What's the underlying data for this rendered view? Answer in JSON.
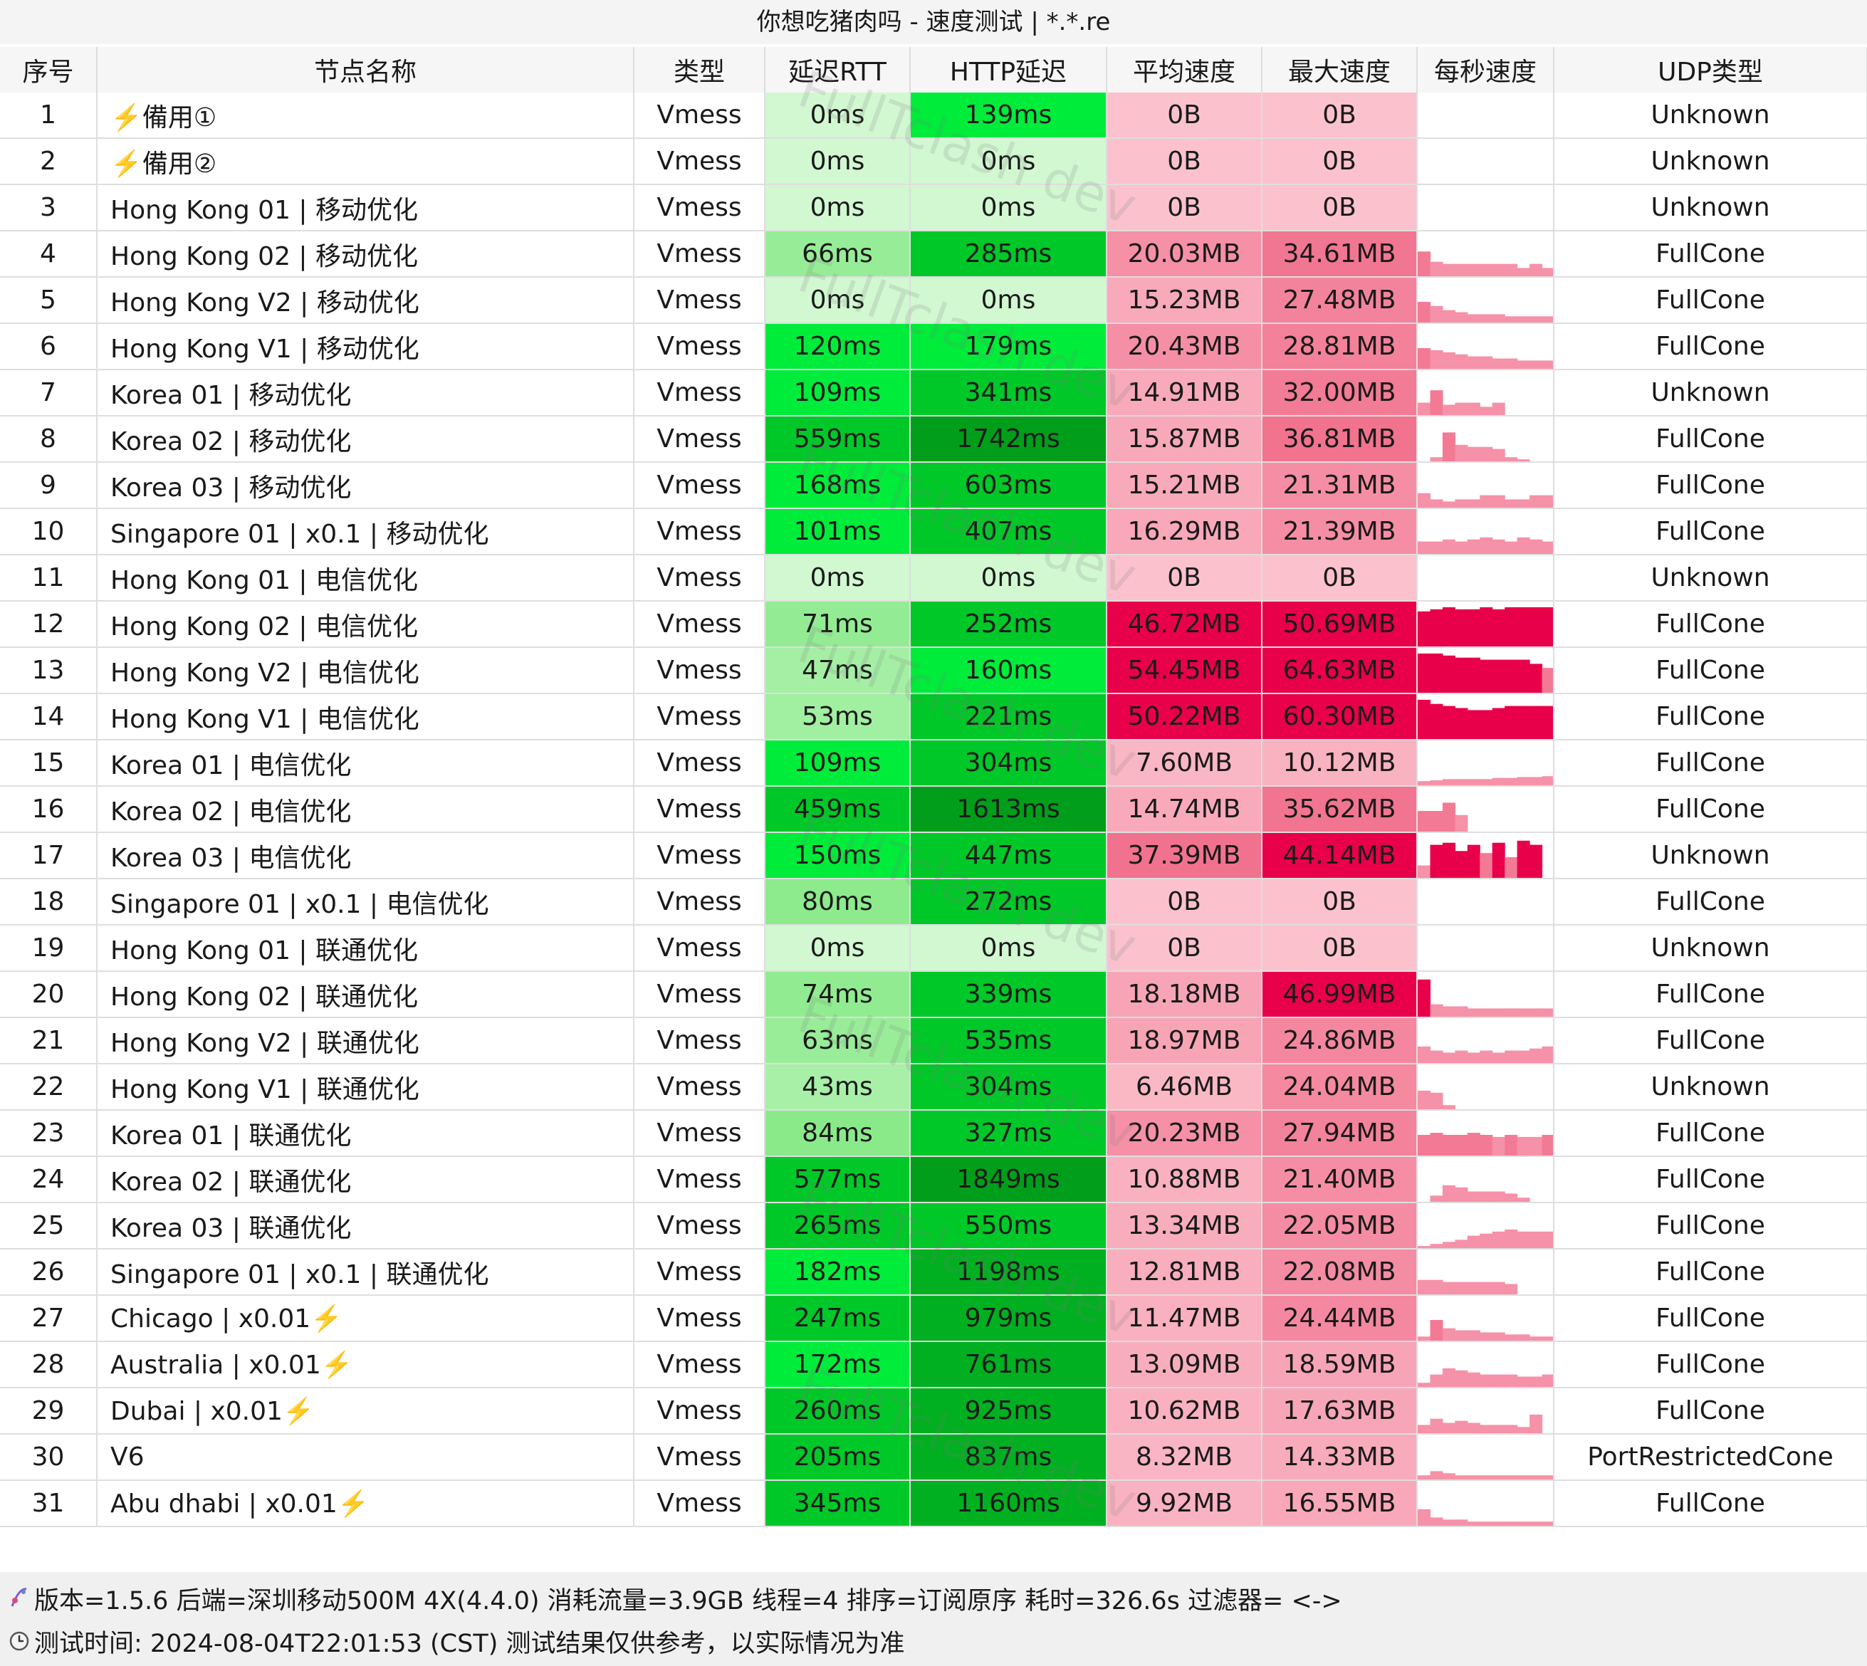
{
  "window": {
    "title": "你想吃猪肉吗 - 速度测试 | *.*.re"
  },
  "colors": {
    "header_bg": "#f6f6f6",
    "latency_lightest": "#d2f8d2",
    "latency_mid": "#00ec3a",
    "latency_dark": "#009e1a",
    "speed_low": "#fbc2cd",
    "speed_mid": "#f06d8a",
    "speed_high": "#e8004a",
    "sparkline": "#f591a8"
  },
  "table": {
    "columns": [
      "序号",
      "节点名称",
      "类型",
      "延迟RTT",
      "HTTP延迟",
      "平均速度",
      "最大速度",
      "每秒速度",
      "UDP类型"
    ],
    "rows": [
      {
        "idx": "1",
        "name": "⚡️備用①",
        "type": "Vmess",
        "rtt": "0ms",
        "http": "139ms",
        "avg": "0B",
        "max": "0B",
        "udp": "Unknown",
        "spark": []
      },
      {
        "idx": "2",
        "name": "⚡️備用②",
        "type": "Vmess",
        "rtt": "0ms",
        "http": "0ms",
        "avg": "0B",
        "max": "0B",
        "udp": "Unknown",
        "spark": []
      },
      {
        "idx": "3",
        "name": "Hong Kong 01 | 移动优化",
        "type": "Vmess",
        "rtt": "0ms",
        "http": "0ms",
        "avg": "0B",
        "max": "0B",
        "udp": "Unknown",
        "spark": []
      },
      {
        "idx": "4",
        "name": "Hong Kong 02 | 移动优化",
        "type": "Vmess",
        "rtt": "66ms",
        "http": "285ms",
        "avg": "20.03MB",
        "max": "34.61MB",
        "udp": "FullCone",
        "spark": [
          0.6,
          0.35,
          0.3,
          0.3,
          0.3,
          0.3,
          0.3,
          0.3,
          0.2,
          0.3,
          0.2
        ]
      },
      {
        "idx": "5",
        "name": "Hong Kong V2 | 移动优化",
        "type": "Vmess",
        "rtt": "0ms",
        "http": "0ms",
        "avg": "15.23MB",
        "max": "27.48MB",
        "udp": "FullCone",
        "spark": [
          0.5,
          0.4,
          0.3,
          0.25,
          0.2,
          0.2,
          0.2,
          0.15,
          0.15,
          0.15,
          0.15
        ]
      },
      {
        "idx": "6",
        "name": "Hong Kong V1 | 移动优化",
        "type": "Vmess",
        "rtt": "120ms",
        "http": "179ms",
        "avg": "20.43MB",
        "max": "28.81MB",
        "udp": "FullCone",
        "spark": [
          0.5,
          0.45,
          0.4,
          0.35,
          0.3,
          0.3,
          0.25,
          0.25,
          0.2,
          0.2,
          0.2
        ]
      },
      {
        "idx": "7",
        "name": "Korea 01 | 移动优化",
        "type": "Vmess",
        "rtt": "109ms",
        "http": "341ms",
        "avg": "14.91MB",
        "max": "32.00MB",
        "udp": "Unknown",
        "spark": [
          0.3,
          0.6,
          0.25,
          0.3,
          0.3,
          0.2,
          0.3,
          0.0,
          0.0,
          0.0,
          0.0
        ]
      },
      {
        "idx": "8",
        "name": "Korea 02 | 移动优化",
        "type": "Vmess",
        "rtt": "559ms",
        "http": "1742ms",
        "avg": "15.87MB",
        "max": "36.81MB",
        "udp": "FullCone",
        "spark": [
          0.0,
          0.1,
          0.7,
          0.4,
          0.35,
          0.35,
          0.3,
          0.1,
          0.05,
          0.0,
          0.0
        ]
      },
      {
        "idx": "9",
        "name": "Korea 03 | 移动优化",
        "type": "Vmess",
        "rtt": "168ms",
        "http": "603ms",
        "avg": "15.21MB",
        "max": "21.31MB",
        "udp": "FullCone",
        "spark": [
          0.35,
          0.2,
          0.15,
          0.2,
          0.2,
          0.3,
          0.3,
          0.2,
          0.2,
          0.3,
          0.3
        ]
      },
      {
        "idx": "10",
        "name": "Singapore 01 | x0.1 | 移动优化",
        "type": "Vmess",
        "rtt": "101ms",
        "http": "407ms",
        "avg": "16.29MB",
        "max": "21.39MB",
        "udp": "FullCone",
        "spark": [
          0.3,
          0.3,
          0.35,
          0.3,
          0.35,
          0.4,
          0.35,
          0.3,
          0.4,
          0.35,
          0.3
        ]
      },
      {
        "idx": "11",
        "name": "Hong Kong 01 | 电信优化",
        "type": "Vmess",
        "rtt": "0ms",
        "http": "0ms",
        "avg": "0B",
        "max": "0B",
        "udp": "Unknown",
        "spark": []
      },
      {
        "idx": "12",
        "name": "Hong Kong 02 | 电信优化",
        "type": "Vmess",
        "rtt": "71ms",
        "http": "252ms",
        "avg": "46.72MB",
        "max": "50.69MB",
        "udp": "FullCone",
        "spark": [
          0.85,
          0.9,
          0.95,
          0.9,
          0.9,
          0.95,
          0.9,
          0.95,
          0.95,
          0.95,
          0.95
        ]
      },
      {
        "idx": "13",
        "name": "Hong Kong V2 | 电信优化",
        "type": "Vmess",
        "rtt": "47ms",
        "http": "160ms",
        "avg": "54.45MB",
        "max": "64.63MB",
        "udp": "FullCone",
        "spark": [
          0.95,
          0.95,
          0.9,
          0.85,
          0.85,
          0.8,
          0.8,
          0.8,
          0.8,
          0.7,
          0.6
        ]
      },
      {
        "idx": "14",
        "name": "Hong Kong V1 | 电信优化",
        "type": "Vmess",
        "rtt": "53ms",
        "http": "221ms",
        "avg": "50.22MB",
        "max": "60.30MB",
        "udp": "FullCone",
        "spark": [
          0.95,
          0.85,
          0.8,
          0.75,
          0.7,
          0.7,
          0.75,
          0.8,
          0.8,
          0.8,
          0.8
        ]
      },
      {
        "idx": "15",
        "name": "Korea 01 | 电信优化",
        "type": "Vmess",
        "rtt": "109ms",
        "http": "304ms",
        "avg": "7.60MB",
        "max": "10.12MB",
        "udp": "FullCone",
        "spark": [
          0.1,
          0.12,
          0.15,
          0.15,
          0.15,
          0.15,
          0.18,
          0.18,
          0.2,
          0.2,
          0.22
        ]
      },
      {
        "idx": "16",
        "name": "Korea 02 | 电信优化",
        "type": "Vmess",
        "rtt": "459ms",
        "http": "1613ms",
        "avg": "14.74MB",
        "max": "35.62MB",
        "udp": "FullCone",
        "spark": [
          0.5,
          0.5,
          0.7,
          0.4,
          0.0,
          0.0,
          0.0,
          0.0,
          0.0,
          0.0,
          0.0
        ]
      },
      {
        "idx": "17",
        "name": "Korea 03 | 电信优化",
        "type": "Vmess",
        "rtt": "150ms",
        "http": "447ms",
        "avg": "37.39MB",
        "max": "44.14MB",
        "udp": "Unknown",
        "spark": [
          0.3,
          0.8,
          0.85,
          0.65,
          0.8,
          0.6,
          0.85,
          0.5,
          0.9,
          0.8,
          0.0
        ]
      },
      {
        "idx": "18",
        "name": "Singapore 01 | x0.1 | 电信优化",
        "type": "Vmess",
        "rtt": "80ms",
        "http": "272ms",
        "avg": "0B",
        "max": "0B",
        "udp": "FullCone",
        "spark": []
      },
      {
        "idx": "19",
        "name": "Hong Kong 01 | 联通优化",
        "type": "Vmess",
        "rtt": "0ms",
        "http": "0ms",
        "avg": "0B",
        "max": "0B",
        "udp": "Unknown",
        "spark": []
      },
      {
        "idx": "20",
        "name": "Hong Kong 02 | 联通优化",
        "type": "Vmess",
        "rtt": "74ms",
        "http": "339ms",
        "avg": "18.18MB",
        "max": "46.99MB",
        "udp": "FullCone",
        "spark": [
          0.9,
          0.3,
          0.25,
          0.25,
          0.2,
          0.2,
          0.2,
          0.2,
          0.2,
          0.2,
          0.2
        ]
      },
      {
        "idx": "21",
        "name": "Hong Kong V2 | 联通优化",
        "type": "Vmess",
        "rtt": "63ms",
        "http": "535ms",
        "avg": "18.97MB",
        "max": "24.86MB",
        "udp": "FullCone",
        "spark": [
          0.4,
          0.3,
          0.25,
          0.3,
          0.25,
          0.3,
          0.25,
          0.3,
          0.3,
          0.35,
          0.4
        ]
      },
      {
        "idx": "22",
        "name": "Hong Kong V1 | 联通优化",
        "type": "Vmess",
        "rtt": "43ms",
        "http": "304ms",
        "avg": "6.46MB",
        "max": "24.04MB",
        "udp": "Unknown",
        "spark": [
          0.45,
          0.4,
          0.1,
          0.0,
          0.0,
          0.0,
          0.0,
          0.0,
          0.0,
          0.0,
          0.0
        ]
      },
      {
        "idx": "23",
        "name": "Korea 01 | 联通优化",
        "type": "Vmess",
        "rtt": "84ms",
        "http": "327ms",
        "avg": "20.23MB",
        "max": "27.94MB",
        "udp": "FullCone",
        "spark": [
          0.5,
          0.55,
          0.5,
          0.5,
          0.55,
          0.5,
          0.45,
          0.5,
          0.45,
          0.45,
          0.5
        ]
      },
      {
        "idx": "24",
        "name": "Korea 02 | 联通优化",
        "type": "Vmess",
        "rtt": "577ms",
        "http": "1849ms",
        "avg": "10.88MB",
        "max": "21.40MB",
        "udp": "FullCone",
        "spark": [
          0.0,
          0.15,
          0.4,
          0.35,
          0.25,
          0.25,
          0.25,
          0.2,
          0.1,
          0.0,
          0.0
        ]
      },
      {
        "idx": "25",
        "name": "Korea 03 | 联通优化",
        "type": "Vmess",
        "rtt": "265ms",
        "http": "550ms",
        "avg": "13.34MB",
        "max": "22.05MB",
        "udp": "FullCone",
        "spark": [
          0.05,
          0.1,
          0.15,
          0.2,
          0.3,
          0.35,
          0.4,
          0.45,
          0.4,
          0.4,
          0.4
        ]
      },
      {
        "idx": "26",
        "name": "Singapore 01 | x0.1 | 联通优化",
        "type": "Vmess",
        "rtt": "182ms",
        "http": "1198ms",
        "avg": "12.81MB",
        "max": "22.08MB",
        "udp": "FullCone",
        "spark": [
          0.35,
          0.35,
          0.3,
          0.3,
          0.3,
          0.3,
          0.3,
          0.25,
          0.0,
          0.0,
          0.0
        ]
      },
      {
        "idx": "27",
        "name": "Chicago | x0.01⚡️",
        "type": "Vmess",
        "rtt": "247ms",
        "http": "979ms",
        "avg": "11.47MB",
        "max": "24.44MB",
        "udp": "FullCone",
        "spark": [
          0.1,
          0.5,
          0.3,
          0.25,
          0.25,
          0.2,
          0.2,
          0.15,
          0.15,
          0.1,
          0.1
        ]
      },
      {
        "idx": "28",
        "name": "Australia | x0.01⚡️",
        "type": "Vmess",
        "rtt": "172ms",
        "http": "761ms",
        "avg": "13.09MB",
        "max": "18.59MB",
        "udp": "FullCone",
        "spark": [
          0.1,
          0.3,
          0.45,
          0.4,
          0.35,
          0.3,
          0.3,
          0.3,
          0.25,
          0.25,
          0.3
        ]
      },
      {
        "idx": "29",
        "name": "Dubai | x0.01⚡️",
        "type": "Vmess",
        "rtt": "260ms",
        "http": "925ms",
        "avg": "10.62MB",
        "max": "17.63MB",
        "udp": "FullCone",
        "spark": [
          0.2,
          0.35,
          0.25,
          0.3,
          0.25,
          0.2,
          0.2,
          0.2,
          0.15,
          0.45,
          0.0
        ]
      },
      {
        "idx": "30",
        "name": "V6",
        "type": "Vmess",
        "rtt": "205ms",
        "http": "837ms",
        "avg": "8.32MB",
        "max": "14.33MB",
        "udp": "PortRestrictedCone",
        "spark": [
          0.1,
          0.2,
          0.15,
          0.1,
          0.1,
          0.1,
          0.1,
          0.1,
          0.1,
          0.1,
          0.1
        ]
      },
      {
        "idx": "31",
        "name": "Abu dhabi | x0.01⚡️",
        "type": "Vmess",
        "rtt": "345ms",
        "http": "1160ms",
        "avg": "9.92MB",
        "max": "16.55MB",
        "udp": "FullCone",
        "spark": [
          0.4,
          0.2,
          0.15,
          0.15,
          0.1,
          0.1,
          0.1,
          0.1,
          0.1,
          0.1,
          0.1
        ]
      }
    ]
  },
  "footer": {
    "line1_icon": "version-icon",
    "line1": "版本=1.5.6  后端=深圳移动500M 4X(4.4.0) 消耗流量=3.9GB  线程=4  排序=订阅原序  耗时=326.6s  过滤器= <->",
    "line2_icon": "clock-icon",
    "line2": "测试时间: 2024-08-04T22:01:53 (CST)  测试结果仅供参考，以实际情况为准"
  },
  "watermark": {
    "text": "FullTclash dev"
  }
}
